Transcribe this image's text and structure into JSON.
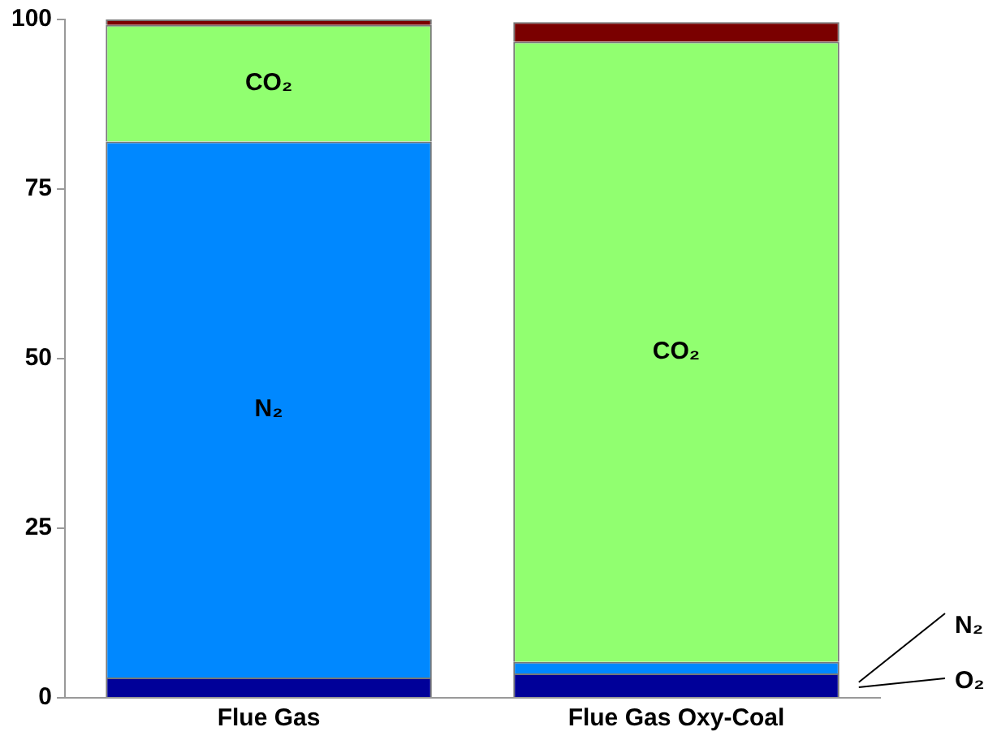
{
  "chart_data": {
    "type": "bar",
    "stacked": true,
    "categories": [
      "Flue Gas",
      "Flue Gas Oxy-Coal"
    ],
    "series": [
      {
        "name": "O₂",
        "color": "#000099",
        "values": [
          3,
          3.6
        ]
      },
      {
        "name": "N₂",
        "color": "#0088ff",
        "values": [
          79,
          1.7
        ]
      },
      {
        "name": "CO₂",
        "color": "#91ff70",
        "values": [
          17.2,
          91.4
        ]
      },
      {
        "color": "#7a0000",
        "values": [
          0.8,
          2.9
        ]
      }
    ],
    "ylim": [
      0,
      100
    ],
    "yticks": [
      0,
      25,
      50,
      75,
      100
    ],
    "grid": false,
    "legend": false
  }
}
